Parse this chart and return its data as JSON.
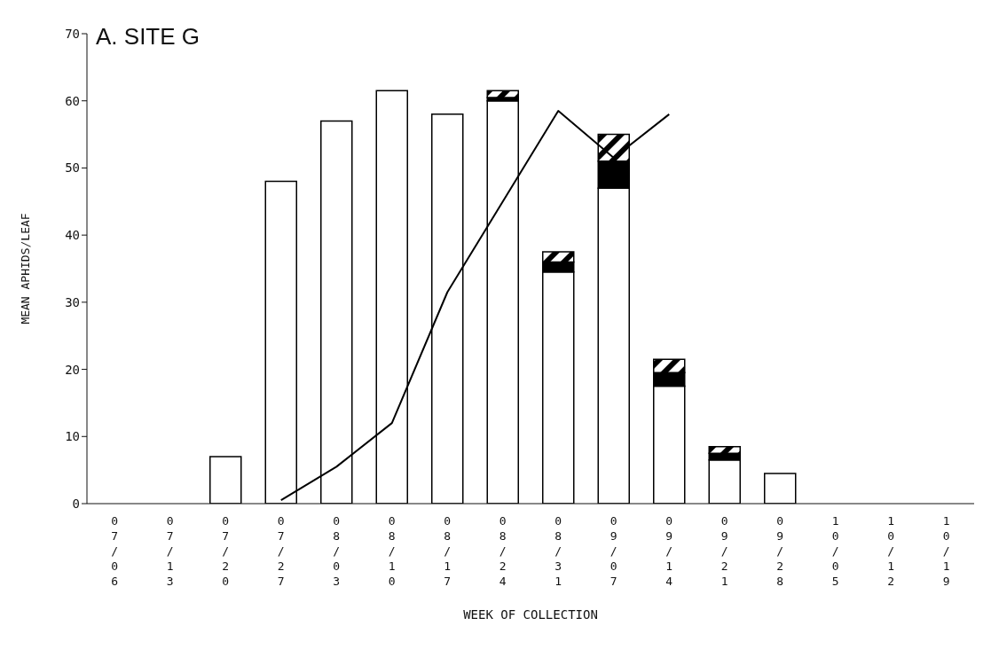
{
  "chart_data": {
    "type": "bar",
    "title": "A. SITE G",
    "xlabel": "WEEK OF COLLECTION",
    "ylabel": "MEAN APHIDS/LEAF",
    "categories": [
      "07/06",
      "07/13",
      "07/20",
      "07/27",
      "08/03",
      "08/10",
      "08/17",
      "08/24",
      "08/31",
      "09/07",
      "09/14",
      "09/21",
      "09/28",
      "10/05",
      "10/12",
      "10/19"
    ],
    "stacked": true,
    "series": [
      {
        "color": "#ffffff",
        "values": [
          0,
          0,
          7,
          48,
          57,
          61.5,
          58,
          60,
          34.5,
          47,
          17.5,
          6.5,
          4.5,
          0,
          0,
          0
        ]
      },
      {
        "color": "#000000",
        "values": [
          0,
          0,
          0,
          0,
          0,
          0,
          0,
          0.5,
          1.5,
          4,
          2,
          1,
          0,
          0,
          0,
          0
        ]
      },
      {
        "color": "#000000",
        "values": [
          0,
          0,
          0,
          0,
          0,
          0,
          0,
          1,
          1.5,
          4,
          2,
          1,
          0,
          0,
          0,
          0
        ]
      },
      {
        "type": "line",
        "color": "#000000",
        "values": [
          null,
          null,
          null,
          0.5,
          5.5,
          12,
          31.5,
          45,
          58.5,
          51.5,
          58,
          null,
          null,
          null,
          null,
          null
        ]
      }
    ],
    "ylim": [
      0,
      70
    ],
    "yticks": [
      0,
      10,
      20,
      30,
      40,
      50,
      60,
      70
    ],
    "grid": false,
    "legend": false,
    "marker": "none",
    "line_style": "solid"
  }
}
